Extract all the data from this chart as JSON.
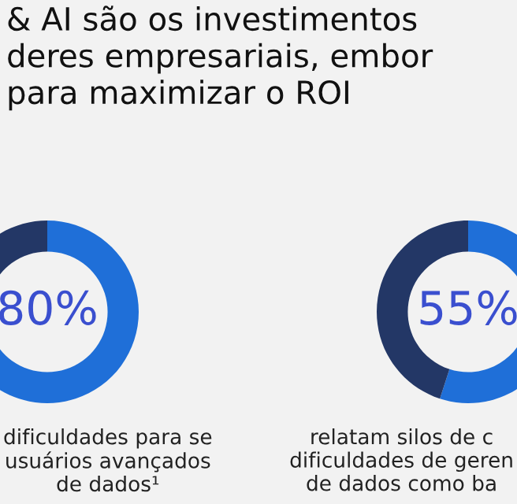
{
  "chart_data": [
    {
      "type": "donut",
      "title": "& AI são os investimentos\nderes empresariais, embor\npara maximizar o ROI",
      "categories": [
        null,
        null
      ],
      "values": [
        80,
        20
      ],
      "colors": [
        "#1f6fd8",
        "#233766"
      ],
      "value_labels": [
        "80%",
        null
      ],
      "annotations": [
        "dificuldades para se\nusuários avançados\nde dados¹"
      ]
    },
    {
      "type": "donut",
      "categories": [
        null,
        null
      ],
      "values": [
        55,
        45
      ],
      "colors": [
        "#1f6fd8",
        "#233766"
      ],
      "value_labels": [
        "55%",
        null
      ],
      "annotations": [
        "relatam silos de c\ndificuldades de geren\nde dados como ba"
      ]
    }
  ]
}
